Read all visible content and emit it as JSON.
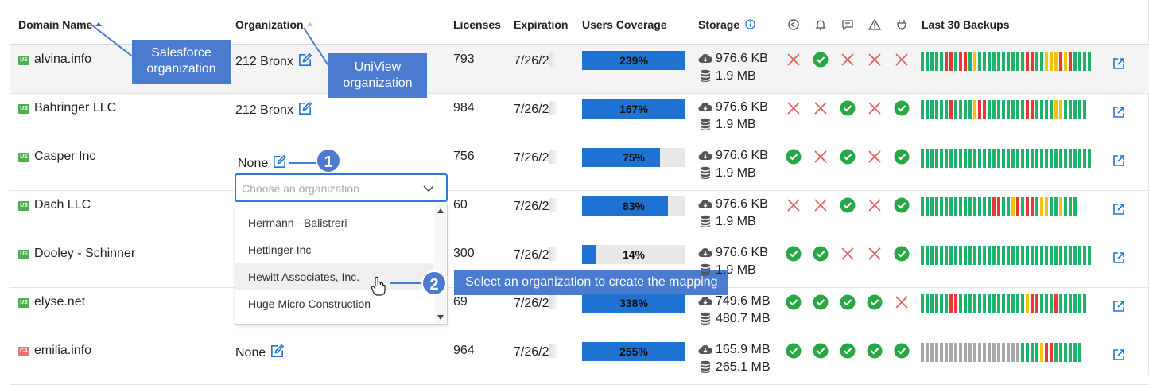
{
  "columns": {
    "domain": "Domain Name",
    "organization": "Organization",
    "licenses": "Licenses",
    "expiration": "Expiration",
    "coverage": "Users Coverage",
    "storage": "Storage",
    "backups": "Last 30 Backups"
  },
  "rows": [
    {
      "flag": "US",
      "domain": "alvina.info",
      "org": "212 Bronx",
      "licenses": "793",
      "exp": "7/26/2",
      "coverage": "239%",
      "coverage_fraction": 1.0,
      "storage_cloud": "976.6 KB",
      "storage_db": "1.9 MB"
    },
    {
      "flag": "US",
      "domain": "Bahringer LLC",
      "org": "212 Bronx",
      "licenses": "984",
      "exp": "7/26/2",
      "coverage": "167%",
      "coverage_fraction": 1.0,
      "storage_cloud": "976.6 KB",
      "storage_db": "1.9 MB"
    },
    {
      "flag": "US",
      "domain": "Casper Inc",
      "org": "None",
      "licenses": "756",
      "exp": "7/26/2",
      "coverage": "75%",
      "coverage_fraction": 0.75,
      "storage_cloud": "976.6 KB",
      "storage_db": "1.9 MB"
    },
    {
      "flag": "US",
      "domain": "Dach LLC",
      "org": "",
      "licenses": "60",
      "exp": "7/26/2",
      "coverage": "83%",
      "coverage_fraction": 0.83,
      "storage_cloud": "976.6 KB",
      "storage_db": "1.9 MB"
    },
    {
      "flag": "US",
      "domain": "Dooley - Schinner",
      "org": "",
      "licenses": "300",
      "exp": "7/26/2",
      "coverage": "14%",
      "coverage_fraction": 0.14,
      "storage_cloud": "976.6 KB",
      "storage_db": "1.9 MB"
    },
    {
      "flag": "US",
      "domain": "elyse.net",
      "org": "",
      "licenses": "69",
      "exp": "7/26/2",
      "coverage": "338%",
      "coverage_fraction": 1.0,
      "storage_cloud": "749.6 MB",
      "storage_db": "480.7 MB"
    },
    {
      "flag": "CA",
      "domain": "emilia.info",
      "org": "None",
      "licenses": "964",
      "exp": "7/26/2",
      "coverage": "255%",
      "coverage_fraction": 1.0,
      "storage_cloud": "165.9 MB",
      "storage_db": "265.1 MB"
    }
  ],
  "dropdown": {
    "placeholder": "Choose an organization",
    "options": [
      "Hermann - Balistreri",
      "Hettinger Inc",
      "Hewitt Associates, Inc.",
      "Huge Micro Construction"
    ]
  },
  "callouts": {
    "salesforce": "Salesforce organization",
    "uniview": "UniView organization",
    "step1": "1",
    "step2": "2",
    "step2_text": "Select an organization to create the mapping"
  },
  "colors": {
    "accent": "#1e73d2",
    "ok": "#27a844",
    "fail": "#e05a5a",
    "callout": "#4a7bd0",
    "bar_green": "#1db36b",
    "bar_red": "#e53935",
    "bar_yellow": "#f4c20d",
    "bar_grey": "#a8a8a8"
  },
  "status_icons": [
    "check-icon",
    "cross-icon"
  ]
}
